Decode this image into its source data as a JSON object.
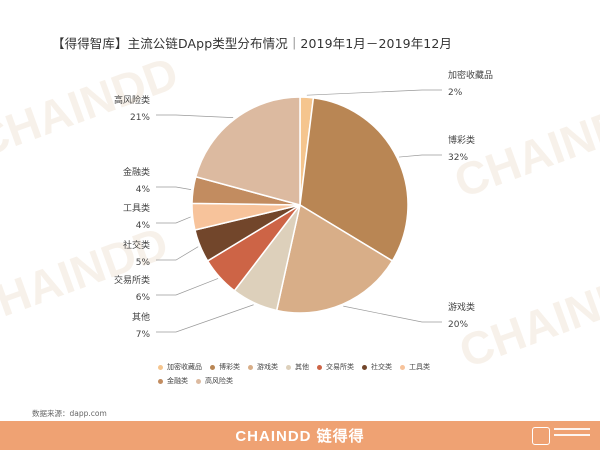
{
  "title": "【得得智库】主流公链DApp类型分布情况｜2019年1月－2019年12月",
  "chart_data": {
    "type": "pie",
    "title": "【得得智库】主流公链DApp类型分布情况｜2019年1月－2019年12月",
    "slices": [
      {
        "label": "加密收藏品",
        "value": 2,
        "value_label": "2%",
        "color": "#f5c58e"
      },
      {
        "label": "博彩类",
        "value": 32,
        "value_label": "32%",
        "color": "#b98654"
      },
      {
        "label": "游戏类",
        "value": 20,
        "value_label": "20%",
        "color": "#d8ae88"
      },
      {
        "label": "其他",
        "value": 7,
        "value_label": "7%",
        "color": "#ddd0bb"
      },
      {
        "label": "交易所类",
        "value": 6,
        "value_label": "6%",
        "color": "#cd6446"
      },
      {
        "label": "社交类",
        "value": 5,
        "value_label": "5%",
        "color": "#72462b"
      },
      {
        "label": "工具类",
        "value": 4,
        "value_label": "4%",
        "color": "#f7c39b"
      },
      {
        "label": "金融类",
        "value": 4,
        "value_label": "4%",
        "color": "#c28c60"
      },
      {
        "label": "高风险类",
        "value": 21,
        "value_label": "21%",
        "color": "#dcbaa0"
      }
    ],
    "start": "12 o'clock",
    "direction": "clockwise",
    "legend_position": "bottom"
  },
  "legend": [
    {
      "label": "加密收藏品",
      "color": "#f5c58e"
    },
    {
      "label": "博彩类",
      "color": "#b98654"
    },
    {
      "label": "游戏类",
      "color": "#d8ae88"
    },
    {
      "label": "其他",
      "color": "#ddd0bb"
    },
    {
      "label": "交易所类",
      "color": "#cd6446"
    },
    {
      "label": "社交类",
      "color": "#72462b"
    },
    {
      "label": "工具类",
      "color": "#f7c39b"
    },
    {
      "label": "金融类",
      "color": "#c28c60"
    },
    {
      "label": "高风险类",
      "color": "#dcbaa0"
    }
  ],
  "source": "数据来源：dapp.com",
  "watermark": "CHAINDD",
  "footer": {
    "brand": "CHAINDD 链得得",
    "background": "#efa273"
  }
}
